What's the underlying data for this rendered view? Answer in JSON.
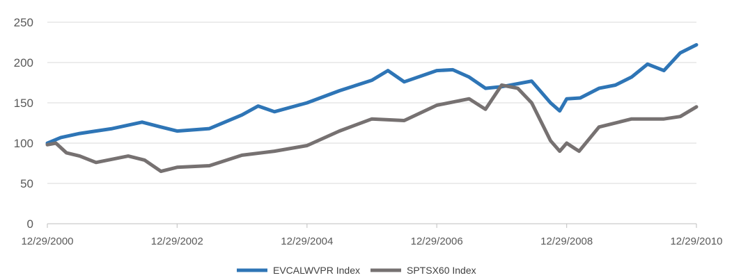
{
  "chart_data": {
    "type": "line",
    "title": "",
    "xlabel": "",
    "ylabel": "",
    "ylim": [
      0,
      250
    ],
    "yticks": [
      0,
      50,
      100,
      150,
      200,
      250
    ],
    "xlim": [
      "12/29/2000",
      "12/29/2010"
    ],
    "xticks": [
      "12/29/2000",
      "12/29/2002",
      "12/29/2004",
      "12/29/2006",
      "12/29/2008",
      "12/29/2010"
    ],
    "grid": "horizontal",
    "legend": "bottom",
    "series": [
      {
        "name": "EVCALWVPR Index",
        "color": "#2e75b6",
        "x": [
          "12/29/2000",
          "03/15/2001",
          "06/29/2001",
          "12/29/2001",
          "06/15/2002",
          "09/29/2002",
          "12/29/2002",
          "06/29/2003",
          "12/29/2003",
          "03/29/2004",
          "06/29/2004",
          "12/29/2004",
          "06/29/2005",
          "12/29/2005",
          "03/29/2006",
          "06/29/2006",
          "12/29/2006",
          "03/29/2007",
          "06/29/2007",
          "09/29/2007",
          "12/29/2007",
          "06/15/2008",
          "09/29/2008",
          "11/20/2008",
          "12/29/2008",
          "03/15/2009",
          "06/29/2009",
          "09/29/2009",
          "12/29/2009",
          "03/29/2010",
          "06/29/2010",
          "09/29/2010",
          "12/29/2010"
        ],
        "y": [
          100,
          107,
          112,
          118,
          126,
          120,
          115,
          118,
          135,
          146,
          139,
          150,
          165,
          178,
          190,
          176,
          190,
          191,
          182,
          168,
          170,
          177,
          150,
          140,
          155,
          156,
          168,
          172,
          182,
          198,
          190,
          212,
          222
        ]
      },
      {
        "name": "SPTSX60 Index",
        "color": "#767171",
        "x": [
          "12/29/2000",
          "02/15/2001",
          "04/15/2001",
          "06/29/2001",
          "09/29/2001",
          "12/29/2001",
          "03/29/2002",
          "06/29/2002",
          "09/29/2002",
          "12/29/2002",
          "06/29/2003",
          "12/29/2003",
          "06/29/2004",
          "12/29/2004",
          "06/29/2005",
          "12/29/2005",
          "06/29/2006",
          "12/29/2006",
          "06/29/2007",
          "09/29/2007",
          "12/29/2007",
          "03/29/2008",
          "06/15/2008",
          "09/29/2008",
          "11/20/2008",
          "12/29/2008",
          "02/15/2009",
          "03/09/2009",
          "06/29/2009",
          "12/29/2009",
          "06/29/2010",
          "09/29/2010",
          "12/29/2010"
        ],
        "y": [
          98,
          100,
          88,
          84,
          76,
          80,
          84,
          79,
          65,
          70,
          72,
          85,
          90,
          97,
          115,
          130,
          128,
          147,
          155,
          142,
          172,
          168,
          150,
          103,
          90,
          100,
          93,
          90,
          120,
          130,
          130,
          133,
          145
        ]
      }
    ]
  }
}
